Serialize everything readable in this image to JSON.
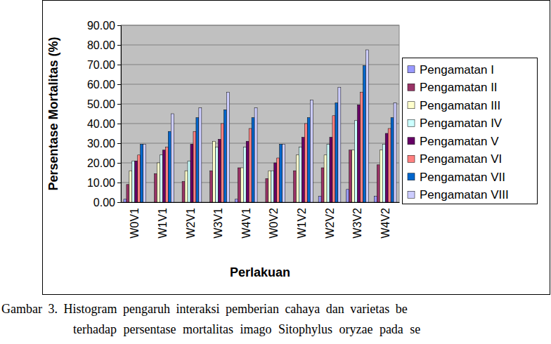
{
  "chart_data": {
    "type": "bar",
    "x_label": "Perlakuan",
    "y_label": "Persentase Mortalitas (%)",
    "annotations": [
      "Gambar 3. Histogram pengaruh interaksi pemberian cahaya dan varietas be",
      "terhadap persentase mortalitas imago Sitophylus oryzae pada se"
    ],
    "categories": [
      "W0V1",
      "W1V1",
      "W2V1",
      "W3V1",
      "W4V1",
      "W0V2",
      "W1V2",
      "W2V2",
      "W3V2",
      "W4V2"
    ],
    "series": [
      {
        "name": "Pengamatan I",
        "color": "#9999ff",
        "values": [
          1.5,
          0,
          0,
          0,
          1.5,
          0,
          0,
          3,
          6.5,
          3
        ]
      },
      {
        "name": "Pengamatan II",
        "color": "#993366",
        "values": [
          9,
          14.5,
          10.5,
          16,
          17.5,
          12,
          16,
          17.5,
          26.5,
          19
        ]
      },
      {
        "name": "Pengamatan III",
        "color": "#ffffcc",
        "values": [
          16,
          20,
          16,
          31,
          17.5,
          16,
          24,
          24,
          26.5,
          26.5
        ]
      },
      {
        "name": "Pengamatan IV",
        "color": "#ccffff",
        "values": [
          21,
          24,
          21,
          28,
          28,
          16,
          28,
          29.5,
          41.5,
          29.5
        ]
      },
      {
        "name": "Pengamatan V",
        "color": "#660066",
        "values": [
          21,
          26.5,
          29.5,
          32,
          31,
          20,
          33,
          33,
          49.5,
          35
        ]
      },
      {
        "name": "Pengamatan VI",
        "color": "#ff8080",
        "values": [
          24,
          28,
          36,
          40,
          37.5,
          22.5,
          40,
          44,
          56,
          37.5
        ]
      },
      {
        "name": "Pengamatan VII",
        "color": "#0066cc",
        "values": [
          29.5,
          36,
          43,
          47,
          43,
          29.5,
          43,
          50.5,
          69.5,
          43
        ]
      },
      {
        "name": "Pengamatan VIII",
        "color": "#ccccff",
        "values": [
          29.5,
          45,
          48,
          56,
          48,
          29.5,
          52,
          58.5,
          77.5,
          50.5
        ]
      }
    ],
    "ylim": [
      0,
      90
    ],
    "yticks": [
      {
        "value": 0,
        "label": "0.00"
      },
      {
        "value": 10,
        "label": "10.00"
      },
      {
        "value": 20,
        "label": "20.00"
      },
      {
        "value": 30,
        "label": "30.00"
      },
      {
        "value": 40,
        "label": "40.00"
      },
      {
        "value": 50,
        "label": "50.00"
      },
      {
        "value": 60,
        "label": "60.00"
      },
      {
        "value": 70,
        "label": "70.00"
      },
      {
        "value": 80,
        "label": "80.00"
      },
      {
        "value": 90,
        "label": "90.00"
      }
    ],
    "grid": true,
    "legend": "right"
  }
}
